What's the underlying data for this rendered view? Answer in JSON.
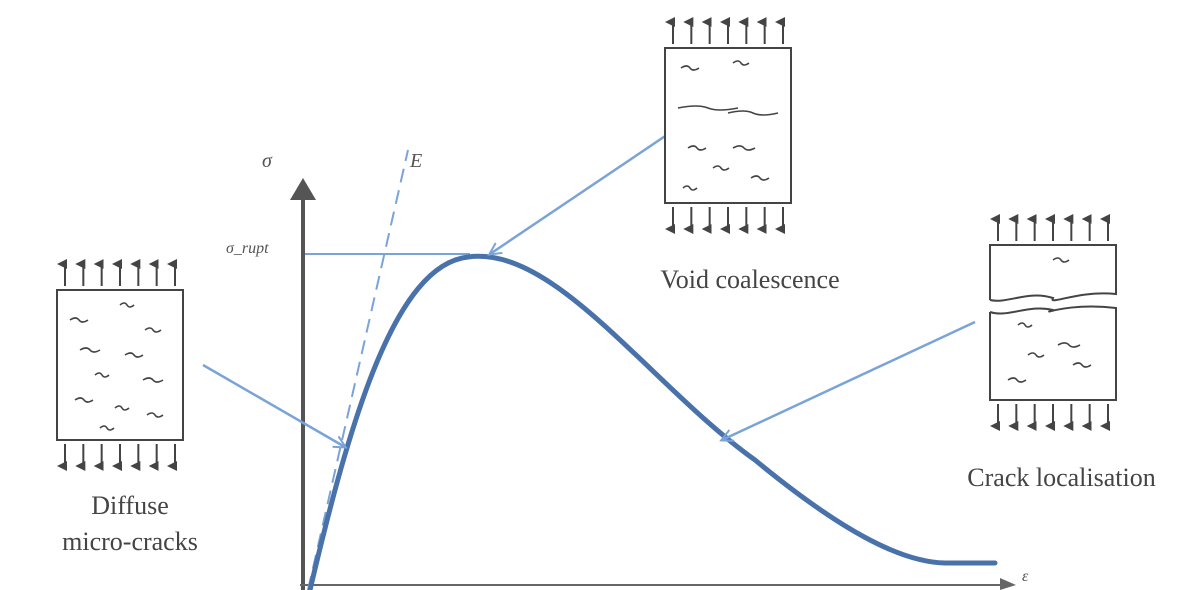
{
  "axes": {
    "y_symbol": "σ",
    "x_symbol": "ε",
    "slope_symbol": "E",
    "peak_label": "σ_rupt"
  },
  "captions": {
    "diffuse_line1": "Diffuse",
    "diffuse_line2": "micro-cracks",
    "void": "Void coalescence",
    "crack": "Crack localisation"
  },
  "colors": {
    "curve": "#4a72aa",
    "pointer": "#7aa3d8",
    "axis": "#555555",
    "sketch": "#444444"
  }
}
